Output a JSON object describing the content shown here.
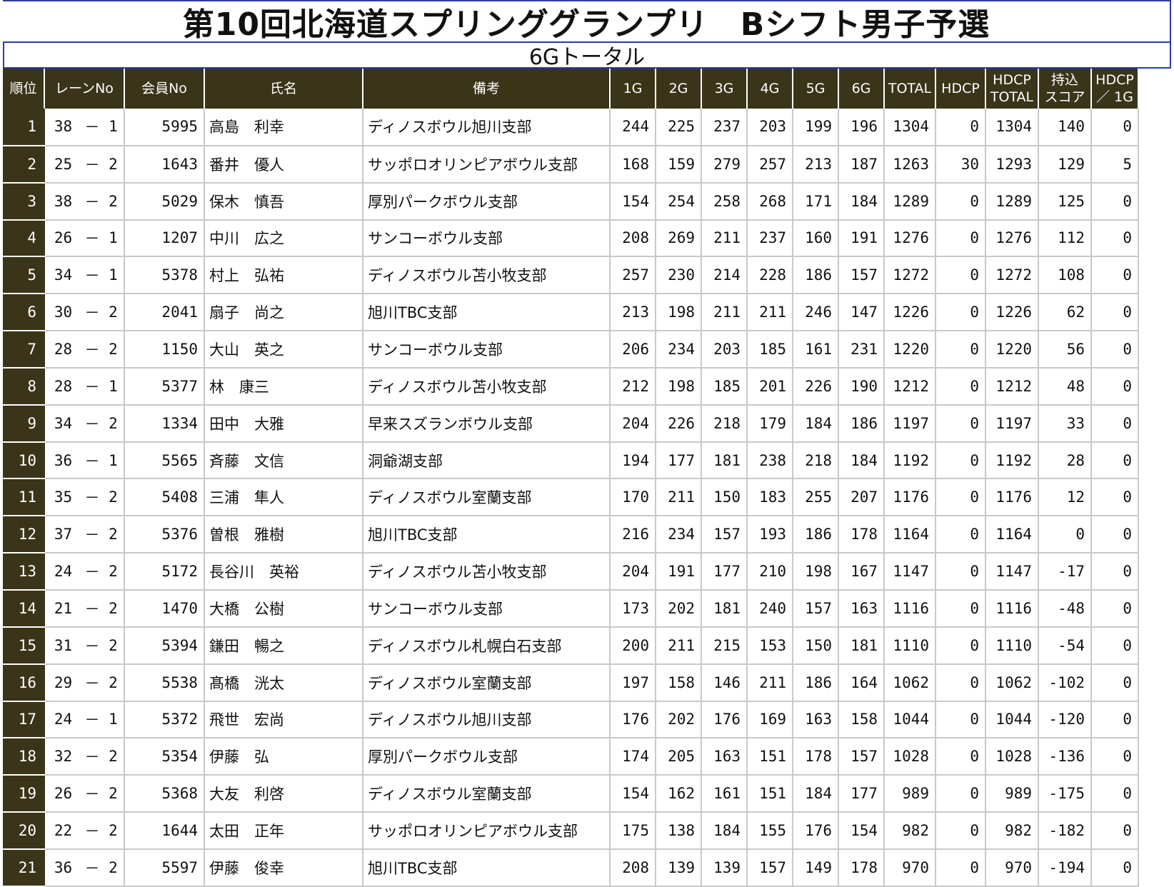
{
  "title": "第10回北海道スプリンググランプリ　Bシフト男子予選",
  "subtitle": "6Gトータル",
  "headers": {
    "rank": "順位",
    "lane": "レーンNo",
    "member": "会員No",
    "name": "氏名",
    "note": "備考",
    "g1": "1G",
    "g2": "2G",
    "g3": "3G",
    "g4": "4G",
    "g5": "5G",
    "g6": "6G",
    "total": "TOTAL",
    "hdcp": "HDCP",
    "hdcp_total_1": "HDCP",
    "hdcp_total_2": "TOTAL",
    "carry_1": "持込",
    "carry_2": "スコア",
    "hdcp_per_1": "HDCP",
    "hdcp_per_2": "／ 1G"
  },
  "rows": [
    {
      "rank": "1",
      "lane": "38",
      "dash": "－",
      "pos": "1",
      "member": "5995",
      "name": "高島　利幸",
      "note": "ディノスボウル旭川支部",
      "g": [
        "244",
        "225",
        "237",
        "203",
        "199",
        "196"
      ],
      "total": "1304",
      "hdcp": "0",
      "hdcp_total": "1304",
      "carry": "140",
      "hdcp_per": "0"
    },
    {
      "rank": "2",
      "lane": "25",
      "dash": "－",
      "pos": "2",
      "member": "1643",
      "name": "番井　優人",
      "note": "サッポロオリンピアボウル支部",
      "g": [
        "168",
        "159",
        "279",
        "257",
        "213",
        "187"
      ],
      "total": "1263",
      "hdcp": "30",
      "hdcp_total": "1293",
      "carry": "129",
      "hdcp_per": "5"
    },
    {
      "rank": "3",
      "lane": "38",
      "dash": "－",
      "pos": "2",
      "member": "5029",
      "name": "保木　慎吾",
      "note": "厚別パークボウル支部",
      "g": [
        "154",
        "254",
        "258",
        "268",
        "171",
        "184"
      ],
      "total": "1289",
      "hdcp": "0",
      "hdcp_total": "1289",
      "carry": "125",
      "hdcp_per": "0"
    },
    {
      "rank": "4",
      "lane": "26",
      "dash": "－",
      "pos": "1",
      "member": "1207",
      "name": "中川　広之",
      "note": "サンコーボウル支部",
      "g": [
        "208",
        "269",
        "211",
        "237",
        "160",
        "191"
      ],
      "total": "1276",
      "hdcp": "0",
      "hdcp_total": "1276",
      "carry": "112",
      "hdcp_per": "0"
    },
    {
      "rank": "5",
      "lane": "34",
      "dash": "－",
      "pos": "1",
      "member": "5378",
      "name": "村上　弘祐",
      "note": "ディノスボウル苫小牧支部",
      "g": [
        "257",
        "230",
        "214",
        "228",
        "186",
        "157"
      ],
      "total": "1272",
      "hdcp": "0",
      "hdcp_total": "1272",
      "carry": "108",
      "hdcp_per": "0"
    },
    {
      "rank": "6",
      "lane": "30",
      "dash": "－",
      "pos": "2",
      "member": "2041",
      "name": "扇子　尚之",
      "note": "旭川TBC支部",
      "g": [
        "213",
        "198",
        "211",
        "211",
        "246",
        "147"
      ],
      "total": "1226",
      "hdcp": "0",
      "hdcp_total": "1226",
      "carry": "62",
      "hdcp_per": "0"
    },
    {
      "rank": "7",
      "lane": "28",
      "dash": "－",
      "pos": "2",
      "member": "1150",
      "name": "大山　英之",
      "note": "サンコーボウル支部",
      "g": [
        "206",
        "234",
        "203",
        "185",
        "161",
        "231"
      ],
      "total": "1220",
      "hdcp": "0",
      "hdcp_total": "1220",
      "carry": "56",
      "hdcp_per": "0"
    },
    {
      "rank": "8",
      "lane": "28",
      "dash": "－",
      "pos": "1",
      "member": "5377",
      "name": "林　康三",
      "note": "ディノスボウル苫小牧支部",
      "g": [
        "212",
        "198",
        "185",
        "201",
        "226",
        "190"
      ],
      "total": "1212",
      "hdcp": "0",
      "hdcp_total": "1212",
      "carry": "48",
      "hdcp_per": "0"
    },
    {
      "rank": "9",
      "lane": "34",
      "dash": "－",
      "pos": "2",
      "member": "1334",
      "name": "田中　大雅",
      "note": "早来スズランボウル支部",
      "g": [
        "204",
        "226",
        "218",
        "179",
        "184",
        "186"
      ],
      "total": "1197",
      "hdcp": "0",
      "hdcp_total": "1197",
      "carry": "33",
      "hdcp_per": "0"
    },
    {
      "rank": "10",
      "lane": "36",
      "dash": "－",
      "pos": "1",
      "member": "5565",
      "name": "斉藤　文信",
      "note": "洞爺湖支部",
      "g": [
        "194",
        "177",
        "181",
        "238",
        "218",
        "184"
      ],
      "total": "1192",
      "hdcp": "0",
      "hdcp_total": "1192",
      "carry": "28",
      "hdcp_per": "0"
    },
    {
      "rank": "11",
      "lane": "35",
      "dash": "－",
      "pos": "2",
      "member": "5408",
      "name": "三浦　隼人",
      "note": "ディノスボウル室蘭支部",
      "g": [
        "170",
        "211",
        "150",
        "183",
        "255",
        "207"
      ],
      "total": "1176",
      "hdcp": "0",
      "hdcp_total": "1176",
      "carry": "12",
      "hdcp_per": "0"
    },
    {
      "rank": "12",
      "lane": "37",
      "dash": "－",
      "pos": "2",
      "member": "5376",
      "name": "曽根　雅樹",
      "note": "旭川TBC支部",
      "g": [
        "216",
        "234",
        "157",
        "193",
        "186",
        "178"
      ],
      "total": "1164",
      "hdcp": "0",
      "hdcp_total": "1164",
      "carry": "0",
      "hdcp_per": "0"
    },
    {
      "rank": "13",
      "lane": "24",
      "dash": "－",
      "pos": "2",
      "member": "5172",
      "name": "長谷川　英裕",
      "note": "ディノスボウル苫小牧支部",
      "g": [
        "204",
        "191",
        "177",
        "210",
        "198",
        "167"
      ],
      "total": "1147",
      "hdcp": "0",
      "hdcp_total": "1147",
      "carry": "-17",
      "hdcp_per": "0"
    },
    {
      "rank": "14",
      "lane": "21",
      "dash": "－",
      "pos": "2",
      "member": "1470",
      "name": "大橋　公樹",
      "note": "サンコーボウル支部",
      "g": [
        "173",
        "202",
        "181",
        "240",
        "157",
        "163"
      ],
      "total": "1116",
      "hdcp": "0",
      "hdcp_total": "1116",
      "carry": "-48",
      "hdcp_per": "0"
    },
    {
      "rank": "15",
      "lane": "31",
      "dash": "－",
      "pos": "2",
      "member": "5394",
      "name": "鎌田　暢之",
      "note": "ディノスボウル札幌白石支部",
      "g": [
        "200",
        "211",
        "215",
        "153",
        "150",
        "181"
      ],
      "total": "1110",
      "hdcp": "0",
      "hdcp_total": "1110",
      "carry": "-54",
      "hdcp_per": "0"
    },
    {
      "rank": "16",
      "lane": "29",
      "dash": "－",
      "pos": "2",
      "member": "5538",
      "name": "髙橋　洸太",
      "note": "ディノスボウル室蘭支部",
      "g": [
        "197",
        "158",
        "146",
        "211",
        "186",
        "164"
      ],
      "total": "1062",
      "hdcp": "0",
      "hdcp_total": "1062",
      "carry": "-102",
      "hdcp_per": "0"
    },
    {
      "rank": "17",
      "lane": "24",
      "dash": "－",
      "pos": "1",
      "member": "5372",
      "name": "飛世　宏尚",
      "note": "ディノスボウル旭川支部",
      "g": [
        "176",
        "202",
        "176",
        "169",
        "163",
        "158"
      ],
      "total": "1044",
      "hdcp": "0",
      "hdcp_total": "1044",
      "carry": "-120",
      "hdcp_per": "0"
    },
    {
      "rank": "18",
      "lane": "32",
      "dash": "－",
      "pos": "2",
      "member": "5354",
      "name": "伊藤　弘",
      "note": "厚別パークボウル支部",
      "g": [
        "174",
        "205",
        "163",
        "151",
        "178",
        "157"
      ],
      "total": "1028",
      "hdcp": "0",
      "hdcp_total": "1028",
      "carry": "-136",
      "hdcp_per": "0"
    },
    {
      "rank": "19",
      "lane": "26",
      "dash": "－",
      "pos": "2",
      "member": "5368",
      "name": "大友　利啓",
      "note": "ディノスボウル室蘭支部",
      "g": [
        "154",
        "162",
        "161",
        "151",
        "184",
        "177"
      ],
      "total": "989",
      "hdcp": "0",
      "hdcp_total": "989",
      "carry": "-175",
      "hdcp_per": "0"
    },
    {
      "rank": "20",
      "lane": "22",
      "dash": "－",
      "pos": "2",
      "member": "1644",
      "name": "太田　正年",
      "note": "サッポロオリンピアボウル支部",
      "g": [
        "175",
        "138",
        "184",
        "155",
        "176",
        "154"
      ],
      "total": "982",
      "hdcp": "0",
      "hdcp_total": "982",
      "carry": "-182",
      "hdcp_per": "0"
    },
    {
      "rank": "21",
      "lane": "36",
      "dash": "－",
      "pos": "2",
      "member": "5597",
      "name": "伊藤　俊幸",
      "note": "旭川TBC支部",
      "g": [
        "208",
        "139",
        "139",
        "157",
        "149",
        "178"
      ],
      "total": "970",
      "hdcp": "0",
      "hdcp_total": "970",
      "carry": "-194",
      "hdcp_per": "0"
    }
  ]
}
